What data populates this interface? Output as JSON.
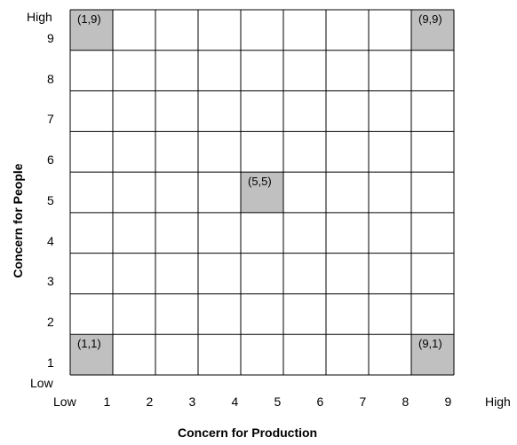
{
  "x_axis": {
    "title": "Concern for Production",
    "low_label": "Low",
    "high_label": "High",
    "ticks": [
      "1",
      "2",
      "3",
      "4",
      "5",
      "6",
      "7",
      "8",
      "9"
    ]
  },
  "y_axis": {
    "title": "Concern for People",
    "low_label": "Low",
    "high_label": "High",
    "ticks": [
      "1",
      "2",
      "3",
      "4",
      "5",
      "6",
      "7",
      "8",
      "9"
    ]
  },
  "grid": {
    "columns": 9,
    "rows": 9,
    "line_color": "#000000",
    "highlight_color": "#c0c0c0"
  },
  "highlighted_cells": [
    {
      "col": 1,
      "row": 9,
      "label": "(1,9)"
    },
    {
      "col": 9,
      "row": 9,
      "label": "(9,9)"
    },
    {
      "col": 5,
      "row": 5,
      "label": "(5,5)"
    },
    {
      "col": 1,
      "row": 1,
      "label": "(1,1)"
    },
    {
      "col": 9,
      "row": 1,
      "label": "(9,1)"
    }
  ]
}
